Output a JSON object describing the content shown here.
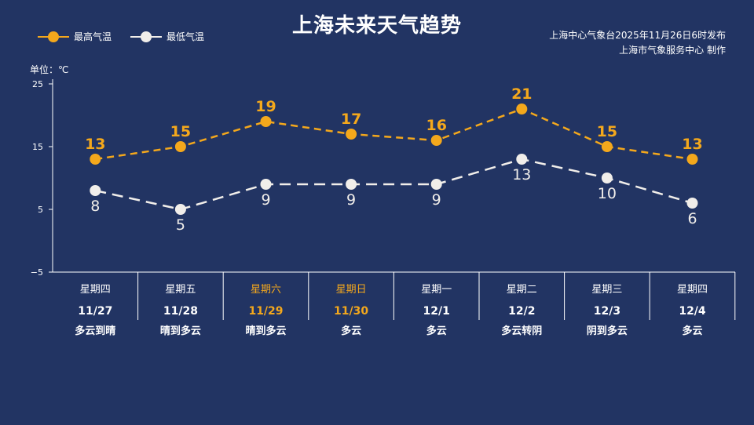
{
  "title": "上海未来天气趋势",
  "publisher": {
    "line1": "上海中心气象台2025年11月26日6时发布",
    "line2": "上海市气象服务中心  制作"
  },
  "legend": {
    "high_label": "最高气温",
    "low_label": "最低气温"
  },
  "unit_label": "单位：℃",
  "colors": {
    "background": "#223463",
    "high": "#f4a81c",
    "low": "#f1eeea",
    "weekend": "#f4a81c",
    "axis": "#ffffff"
  },
  "chart_data": {
    "type": "line",
    "ylim": [
      -5,
      25
    ],
    "yticks": [
      -5,
      5,
      15,
      25
    ],
    "categories": [
      {
        "weekday": "星期四",
        "date": "11/27",
        "weather": "多云到晴",
        "weekend": false
      },
      {
        "weekday": "星期五",
        "date": "11/28",
        "weather": "晴到多云",
        "weekend": false
      },
      {
        "weekday": "星期六",
        "date": "11/29",
        "weather": "晴到多云",
        "weekend": true
      },
      {
        "weekday": "星期日",
        "date": "11/30",
        "weather": "多云",
        "weekend": true
      },
      {
        "weekday": "星期一",
        "date": "12/1",
        "weather": "多云",
        "weekend": false
      },
      {
        "weekday": "星期二",
        "date": "12/2",
        "weather": "多云转阴",
        "weekend": false
      },
      {
        "weekday": "星期三",
        "date": "12/3",
        "weather": "阴到多云",
        "weekend": false
      },
      {
        "weekday": "星期四",
        "date": "12/4",
        "weather": "多云",
        "weekend": false
      }
    ],
    "series": [
      {
        "name": "最高气温",
        "key": "high",
        "values": [
          13,
          15,
          19,
          17,
          16,
          21,
          15,
          13
        ]
      },
      {
        "name": "最低气温",
        "key": "low",
        "values": [
          8,
          5,
          9,
          9,
          9,
          13,
          10,
          6
        ]
      }
    ],
    "grid": false,
    "legend_position": "top-left"
  }
}
